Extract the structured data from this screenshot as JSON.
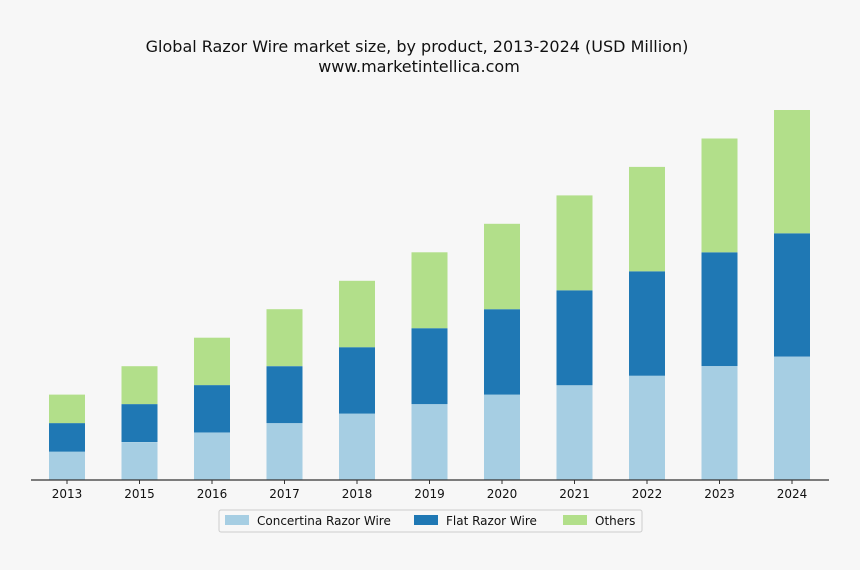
{
  "chart_data": {
    "type": "bar",
    "stacked": true,
    "title": "Global Razor Wire market size, by product, 2013-2024 (USD Million)",
    "subtitle": "www.marketintellica.com",
    "xlabel": "",
    "ylabel": "",
    "y_axis_visible": false,
    "grid": false,
    "legend_position": "bottom-center",
    "ylim": [
      0,
      390
    ],
    "categories": [
      "2013",
      "2015",
      "2016",
      "2017",
      "2018",
      "2019",
      "2020",
      "2021",
      "2022",
      "2023",
      "2024"
    ],
    "series": [
      {
        "name": "Concertina Razor Wire",
        "color": "#a6cee3",
        "values": [
          30,
          40,
          50,
          60,
          70,
          80,
          90,
          100,
          110,
          120,
          130
        ]
      },
      {
        "name": "Flat Razor Wire",
        "color": "#1f78b4",
        "values": [
          30,
          40,
          50,
          60,
          70,
          80,
          90,
          100,
          110,
          120,
          130
        ]
      },
      {
        "name": "Others",
        "color": "#b2df8a",
        "values": [
          30,
          40,
          50,
          60,
          70,
          80,
          90,
          100,
          110,
          120,
          130
        ]
      }
    ]
  }
}
